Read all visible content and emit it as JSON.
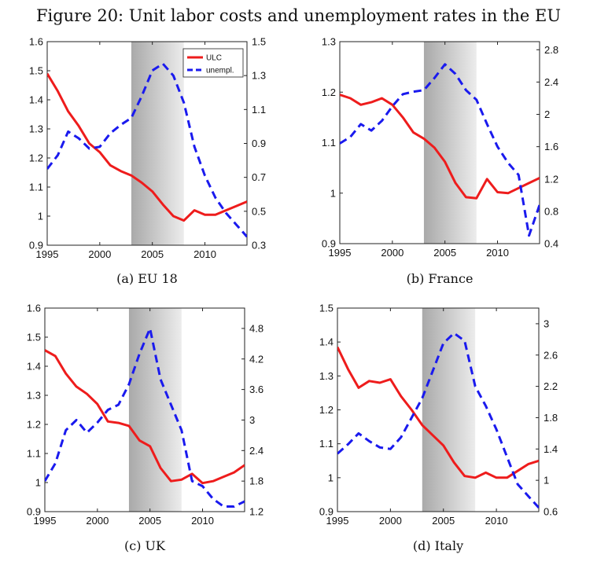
{
  "figure_title": "Figure 20: Unit labor costs and unemployment rates in the EU",
  "colors": {
    "ulc": "#ee1c1c",
    "unempl": "#1a1aee",
    "shade_dark": "#a9a9a9",
    "shade_light": "#ececec"
  },
  "legend": {
    "ulc_label": "ULC",
    "unempl_label": "unempl."
  },
  "chart_data": [
    {
      "type": "line",
      "caption": "(a) EU 18",
      "xlim": [
        1995,
        2014
      ],
      "xticks": [
        1995,
        2000,
        2005,
        2010
      ],
      "shaded_region": [
        2003,
        2008
      ],
      "left_axis": {
        "ylim": [
          0.9,
          1.6
        ],
        "ticks": [
          0.9,
          1,
          1.1,
          1.2,
          1.3,
          1.4,
          1.5,
          1.6
        ],
        "tick_labels": [
          "0.9",
          "1",
          "1.1",
          "1.2",
          "1.3",
          "1.4",
          "1.5",
          "1.6"
        ]
      },
      "right_axis": {
        "ylim": [
          0.3,
          1.5
        ],
        "ticks": [
          0.3,
          0.5,
          0.7,
          0.9,
          1.1,
          1.3,
          1.5
        ],
        "tick_labels": [
          "0.3",
          "0.5",
          "0.7",
          "0.9",
          "1.1",
          "1.3",
          "1.5"
        ]
      },
      "legend_shown": true,
      "legend_position": "top-right",
      "series": [
        {
          "name": "ULC",
          "axis": "left",
          "style": "solid",
          "x": [
            1995,
            1996,
            1997,
            1998,
            1999,
            2000,
            2001,
            2002,
            2003,
            2004,
            2005,
            2006,
            2007,
            2008,
            2009,
            2010,
            2011,
            2012,
            2013,
            2014
          ],
          "values": [
            1.49,
            1.43,
            1.36,
            1.31,
            1.25,
            1.22,
            1.175,
            1.155,
            1.14,
            1.115,
            1.085,
            1.04,
            1.0,
            0.985,
            1.02,
            1.005,
            1.005,
            1.02,
            1.035,
            1.05
          ]
        },
        {
          "name": "unempl.",
          "axis": "right",
          "style": "dashed",
          "x": [
            1995,
            1996,
            1997,
            1998,
            1999,
            2000,
            2001,
            2002,
            2003,
            2004,
            2005,
            2006,
            2007,
            2008,
            2009,
            2010,
            2011,
            2012,
            2013,
            2014
          ],
          "values": [
            0.75,
            0.83,
            0.97,
            0.93,
            0.87,
            0.88,
            0.96,
            1.01,
            1.05,
            1.18,
            1.33,
            1.37,
            1.3,
            1.14,
            0.88,
            0.71,
            0.58,
            0.49,
            0.42,
            0.35
          ]
        }
      ]
    },
    {
      "type": "line",
      "caption": "(b) France",
      "xlim": [
        1995,
        2014
      ],
      "xticks": [
        1995,
        2000,
        2005,
        2010
      ],
      "shaded_region": [
        2003,
        2008
      ],
      "left_axis": {
        "ylim": [
          0.9,
          1.3
        ],
        "ticks": [
          0.9,
          1,
          1.1,
          1.2,
          1.3
        ],
        "tick_labels": [
          "0.9",
          "1",
          "1.1",
          "1.2",
          "1.3"
        ]
      },
      "right_axis": {
        "ylim": [
          0.4,
          2.9
        ],
        "ticks": [
          0.4,
          0.8,
          1.2,
          1.6,
          2,
          2.4,
          2.8
        ],
        "tick_labels": [
          "0.4",
          "0.8",
          "1.2",
          "1.6",
          "2",
          "2.4",
          "2.8"
        ]
      },
      "legend_shown": false,
      "series": [
        {
          "name": "ULC",
          "axis": "left",
          "style": "solid",
          "x": [
            1995,
            1996,
            1997,
            1998,
            1999,
            2000,
            2001,
            2002,
            2003,
            2004,
            2005,
            2006,
            2007,
            2008,
            2009,
            2010,
            2011,
            2012,
            2013,
            2014
          ],
          "values": [
            1.195,
            1.188,
            1.175,
            1.18,
            1.188,
            1.175,
            1.15,
            1.12,
            1.108,
            1.09,
            1.062,
            1.02,
            0.992,
            0.99,
            1.028,
            1.002,
            1.0,
            1.01,
            1.02,
            1.03
          ]
        },
        {
          "name": "unempl.",
          "axis": "right",
          "style": "dashed",
          "x": [
            1995,
            1996,
            1997,
            1998,
            1999,
            2000,
            2001,
            2002,
            2003,
            2004,
            2005,
            2006,
            2007,
            2008,
            2009,
            2010,
            2011,
            2012,
            2013,
            2014
          ],
          "values": [
            1.64,
            1.72,
            1.88,
            1.8,
            1.92,
            2.1,
            2.25,
            2.28,
            2.3,
            2.45,
            2.62,
            2.5,
            2.3,
            2.18,
            1.88,
            1.6,
            1.4,
            1.25,
            0.5,
            0.88
          ]
        }
      ]
    },
    {
      "type": "line",
      "caption": "(c) UK",
      "xlim": [
        1995,
        2014
      ],
      "xticks": [
        1995,
        2000,
        2005,
        2010
      ],
      "shaded_region": [
        2003,
        2008
      ],
      "left_axis": {
        "ylim": [
          0.9,
          1.6
        ],
        "ticks": [
          0.9,
          1,
          1.1,
          1.2,
          1.3,
          1.4,
          1.5,
          1.6
        ],
        "tick_labels": [
          "0.9",
          "1",
          "1.1",
          "1.2",
          "1.3",
          "1.4",
          "1.5",
          "1.6"
        ]
      },
      "right_axis": {
        "ylim": [
          1.2,
          5.2
        ],
        "ticks": [
          1.2,
          1.8,
          2.4,
          3,
          3.6,
          4.2,
          4.8
        ],
        "tick_labels": [
          "1.2",
          "1.8",
          "2.4",
          "3",
          "3.6",
          "4.2",
          "4.8"
        ]
      },
      "legend_shown": false,
      "series": [
        {
          "name": "ULC",
          "axis": "left",
          "style": "solid",
          "x": [
            1995,
            1996,
            1997,
            1998,
            1999,
            2000,
            2001,
            2002,
            2003,
            2004,
            2005,
            2006,
            2007,
            2008,
            2009,
            2010,
            2011,
            2012,
            2013,
            2014
          ],
          "values": [
            1.455,
            1.435,
            1.375,
            1.33,
            1.305,
            1.27,
            1.21,
            1.205,
            1.195,
            1.145,
            1.125,
            1.05,
            1.005,
            1.01,
            1.03,
            0.998,
            1.005,
            1.02,
            1.035,
            1.06
          ]
        },
        {
          "name": "unempl.",
          "axis": "right",
          "style": "dashed",
          "x": [
            1995,
            1996,
            1997,
            1998,
            1999,
            2000,
            2001,
            2002,
            2003,
            2004,
            2005,
            2006,
            2007,
            2008,
            2009,
            2010,
            2011,
            2012,
            2013,
            2014
          ],
          "values": [
            1.8,
            2.15,
            2.8,
            3.0,
            2.75,
            2.95,
            3.2,
            3.3,
            3.7,
            4.3,
            4.8,
            3.8,
            3.3,
            2.8,
            1.8,
            1.7,
            1.45,
            1.3,
            1.3,
            1.4
          ]
        }
      ]
    },
    {
      "type": "line",
      "caption": "(d) Italy",
      "xlim": [
        1995,
        2014
      ],
      "xticks": [
        1995,
        2000,
        2005,
        2010
      ],
      "shaded_region": [
        2003,
        2008
      ],
      "left_axis": {
        "ylim": [
          0.9,
          1.5
        ],
        "ticks": [
          0.9,
          1,
          1.1,
          1.2,
          1.3,
          1.4,
          1.5
        ],
        "tick_labels": [
          "0.9",
          "1",
          "1.1",
          "1.2",
          "1.3",
          "1.4",
          "1.5"
        ]
      },
      "right_axis": {
        "ylim": [
          0.6,
          3.2
        ],
        "ticks": [
          0.6,
          1,
          1.4,
          1.8,
          2.2,
          2.6,
          3
        ],
        "tick_labels": [
          "0.6",
          "1",
          "1.4",
          "1.8",
          "2.2",
          "2.6",
          "3"
        ]
      },
      "legend_shown": false,
      "series": [
        {
          "name": "ULC",
          "axis": "left",
          "style": "solid",
          "x": [
            1995,
            1996,
            1997,
            1998,
            1999,
            2000,
            2001,
            2002,
            2003,
            2004,
            2005,
            2006,
            2007,
            2008,
            2009,
            2010,
            2011,
            2012,
            2013,
            2014
          ],
          "values": [
            1.385,
            1.32,
            1.265,
            1.285,
            1.28,
            1.29,
            1.24,
            1.2,
            1.155,
            1.125,
            1.095,
            1.045,
            1.005,
            1.0,
            1.015,
            1.0,
            1.0,
            1.02,
            1.04,
            1.05
          ]
        },
        {
          "name": "unempl.",
          "axis": "right",
          "style": "dashed",
          "x": [
            1995,
            1996,
            1997,
            1998,
            1999,
            2000,
            2001,
            2002,
            2003,
            2004,
            2005,
            2006,
            2007,
            2008,
            2009,
            2010,
            2011,
            2012,
            2013,
            2014
          ],
          "values": [
            1.34,
            1.46,
            1.6,
            1.5,
            1.42,
            1.4,
            1.55,
            1.8,
            2.05,
            2.4,
            2.75,
            2.88,
            2.78,
            2.2,
            1.95,
            1.65,
            1.3,
            0.95,
            0.8,
            0.65
          ]
        }
      ]
    }
  ]
}
